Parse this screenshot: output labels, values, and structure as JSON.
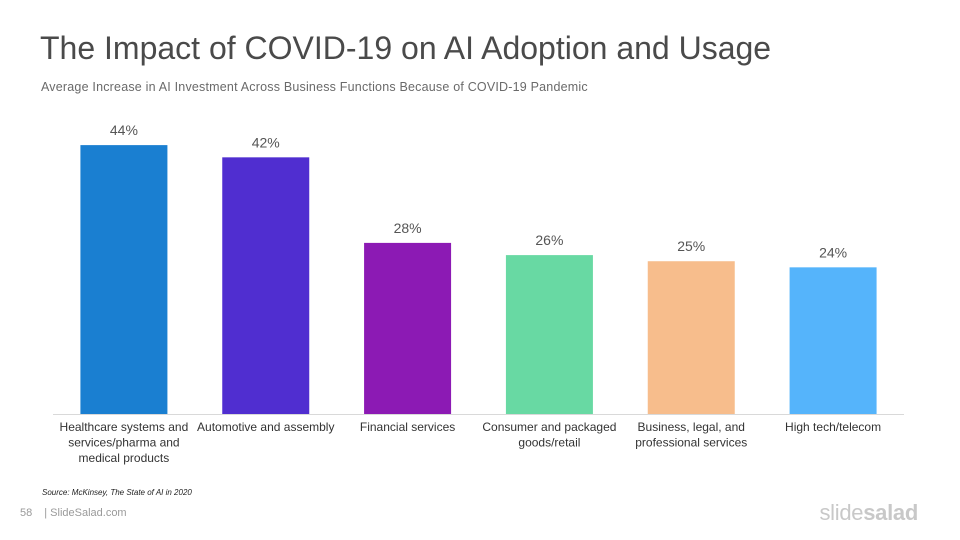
{
  "slide": {
    "title": "The Impact of COVID-19 on AI Adoption and Usage",
    "subtitle": "Average Increase in AI Investment Across Business Functions Because of COVID-19 Pandemic",
    "source": "Source: McKinsey,  The State of AI in 2020",
    "page_number": "58",
    "site": "| SlideSalad.com",
    "logo_light": "slide",
    "logo_bold": "salad"
  },
  "chart_data": {
    "type": "bar",
    "categories": [
      [
        "Healthcare systems and",
        "services/pharma and",
        "medical products"
      ],
      [
        "Automotive and assembly"
      ],
      [
        "Financial services"
      ],
      [
        "Consumer and packaged",
        "goods/retail"
      ],
      [
        "Business, legal, and",
        "professional services"
      ],
      [
        "High tech/telecom"
      ]
    ],
    "values": [
      44,
      42,
      28,
      26,
      25,
      24
    ],
    "data_labels": [
      "44%",
      "42%",
      "28%",
      "26%",
      "25%",
      "24%"
    ],
    "colors": [
      "#1a7fd1",
      "#502ed0",
      "#8c1ab4",
      "#68d9a3",
      "#f7bd8c",
      "#55b4fb"
    ],
    "ylim": [
      0,
      45
    ],
    "grid": false,
    "legend": "none"
  }
}
